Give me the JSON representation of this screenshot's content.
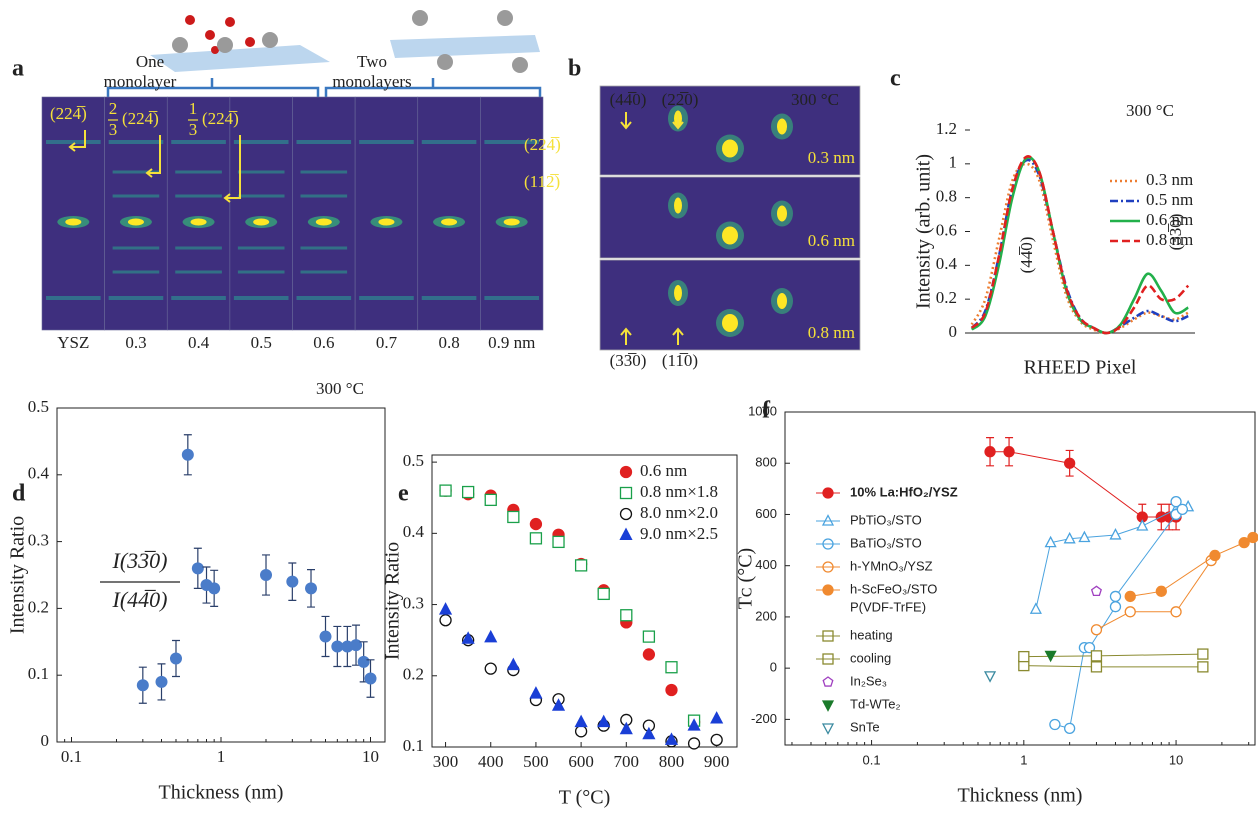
{
  "panel_labels": [
    "a",
    "b",
    "c",
    "d",
    "e",
    "f"
  ],
  "panel_a": {
    "top_labels": [
      [
        "One",
        "monolayer"
      ],
      [
        "Two",
        "monolayers"
      ]
    ],
    "sample_labels": [
      "YSZ",
      "0.3",
      "0.4",
      "0.5",
      "0.6",
      "0.7",
      "0.8",
      "0.9 nm"
    ],
    "annotations": [
      {
        "index": "(224̅)"
      },
      {
        "numerator": "2",
        "denominator": "3",
        "index": "(224̅)"
      },
      {
        "numerator": "1",
        "denominator": "3",
        "index": "(224̅)"
      },
      {
        "index": "(224̅)"
      },
      {
        "index": "(112̅)"
      }
    ]
  },
  "panel_b": {
    "temperature": "300 °C",
    "thickness_labels": [
      "0.3 nm",
      "0.6 nm",
      "0.8 nm"
    ],
    "top_indices": [
      "(44̅0)",
      "(22̅0)"
    ],
    "bottom_indices": [
      "(33̅0)",
      "(11̅0)"
    ]
  },
  "chart_data": [
    {
      "type": "line",
      "annotation": "300 °C",
      "ylabel": "Intensity (arb. unit)",
      "xlabel": "RHEED Pixel",
      "peak_labels": [
        "(44̅0)",
        "(33̅0)"
      ],
      "categories": [
        null,
        null,
        null,
        null,
        null,
        null,
        null,
        null,
        null,
        null,
        null,
        null,
        null,
        null,
        null,
        null,
        null
      ],
      "ylim": [
        0,
        1.2
      ],
      "yticks": [
        0,
        0.2,
        0.4,
        0.6,
        0.8,
        1,
        1.2
      ],
      "legend": "upper right",
      "series": [
        {
          "name": "0.3 nm",
          "color": "#ed7d31",
          "dash": "2,3",
          "values": [
            0.05,
            0.2,
            0.55,
            0.9,
            1.0,
            0.9,
            0.55,
            0.22,
            0.07,
            0.02,
            0.0,
            0.03,
            0.08,
            0.12,
            0.1,
            0.08,
            0.12
          ]
        },
        {
          "name": "0.5 nm",
          "color": "#1f3fbf",
          "dash": "8,3,2,3",
          "values": [
            0.03,
            0.13,
            0.45,
            0.85,
            1.02,
            0.93,
            0.6,
            0.27,
            0.09,
            0.03,
            0.0,
            0.04,
            0.09,
            0.13,
            0.1,
            0.07,
            0.1
          ]
        },
        {
          "name": "0.6 nm",
          "color": "#22b04b",
          "dash": "none",
          "values": [
            0.02,
            0.1,
            0.4,
            0.8,
            1.03,
            0.95,
            0.6,
            0.25,
            0.08,
            0.03,
            0.0,
            0.05,
            0.2,
            0.35,
            0.25,
            0.12,
            0.15
          ]
        },
        {
          "name": "0.8 nm",
          "color": "#e02020",
          "dash": "8,4",
          "values": [
            0.03,
            0.12,
            0.45,
            0.85,
            1.04,
            0.95,
            0.6,
            0.26,
            0.09,
            0.03,
            0.0,
            0.04,
            0.15,
            0.28,
            0.2,
            0.2,
            0.28
          ]
        }
      ]
    },
    {
      "type": "scatter",
      "annotation": "300 °C",
      "ylabel": "Intensity Ratio",
      "xlabel": "Thickness (nm)",
      "ratio_label": {
        "numerator": "I(33̅0)",
        "denominator": "I(44̅0)"
      },
      "xscale": "log",
      "xlim": [
        0.08,
        12.5
      ],
      "xticks": [
        0.1,
        1,
        10
      ],
      "ylim": [
        0,
        0.5
      ],
      "yticks": [
        0,
        0.1,
        0.2,
        0.3,
        0.4,
        0.5
      ],
      "color": "#4a7cc9",
      "x": [
        0.3,
        0.4,
        0.5,
        0.6,
        0.7,
        0.8,
        0.9,
        2,
        3,
        4,
        5,
        6,
        7,
        8,
        9,
        10
      ],
      "values": [
        0.085,
        0.09,
        0.125,
        0.43,
        0.26,
        0.235,
        0.23,
        0.25,
        0.24,
        0.23,
        0.158,
        0.143,
        0.143,
        0.145,
        0.12,
        0.095
      ],
      "errors": [
        0.027,
        0.027,
        0.027,
        0.03,
        0.03,
        0.027,
        0.027,
        0.03,
        0.028,
        0.028,
        0.03,
        0.03,
        0.03,
        0.03,
        0.03,
        0.028
      ]
    },
    {
      "type": "scatter",
      "ylabel": "Intensity Ratio",
      "xlabel": "T (°C)",
      "xlim": [
        270,
        945
      ],
      "xticks": [
        300,
        400,
        500,
        600,
        700,
        800,
        900
      ],
      "ylim": [
        0.1,
        0.51
      ],
      "yticks": [
        0.1,
        0.2,
        0.3,
        0.4,
        0.5
      ],
      "legend": "upper right",
      "series": [
        {
          "name": "0.6 nm",
          "color": "#e02020",
          "marker": "circle",
          "filled": true,
          "x": [
            300,
            350,
            400,
            450,
            500,
            550,
            600,
            650,
            700,
            750,
            800,
            850
          ],
          "values": [
            0.46,
            0.455,
            0.453,
            0.433,
            0.413,
            0.398,
            0.357,
            0.32,
            0.275,
            0.23,
            0.18,
            0.135
          ]
        },
        {
          "name": "0.8 nm×1.8",
          "color": "#1aa04a",
          "marker": "square",
          "filled": false,
          "x": [
            300,
            350,
            400,
            450,
            500,
            550,
            600,
            650,
            700,
            750,
            800,
            850
          ],
          "values": [
            0.46,
            0.458,
            0.447,
            0.423,
            0.393,
            0.388,
            0.355,
            0.315,
            0.285,
            0.255,
            0.212,
            0.137
          ]
        },
        {
          "name": "8.0 nm×2.0",
          "color": "#111111",
          "marker": "circle",
          "filled": false,
          "x": [
            300,
            350,
            400,
            450,
            500,
            550,
            600,
            650,
            700,
            750,
            800,
            850,
            900
          ],
          "values": [
            0.278,
            0.25,
            0.21,
            0.208,
            0.166,
            0.167,
            0.122,
            0.13,
            0.138,
            0.13,
            0.108,
            0.105,
            0.11
          ]
        },
        {
          "name": "9.0 nm×2.5",
          "color": "#1a3fd6",
          "marker": "triangle",
          "filled": true,
          "x": [
            300,
            350,
            400,
            450,
            500,
            550,
            600,
            650,
            700,
            750,
            800,
            850,
            900
          ],
          "values": [
            0.293,
            0.252,
            0.254,
            0.215,
            0.175,
            0.158,
            0.135,
            0.135,
            0.125,
            0.118,
            0.11,
            0.13,
            0.14
          ]
        }
      ]
    },
    {
      "type": "scatter",
      "ylabel": "Tᴄ (°C)",
      "xlabel": "Thickness (nm)",
      "xscale": "log",
      "xlim": [
        0.027,
        33
      ],
      "xticks": [
        0.1,
        1,
        10
      ],
      "ylim": [
        -300,
        1000
      ],
      "yticks": [
        -200,
        0,
        200,
        400,
        600,
        800,
        1000
      ],
      "legend": "left",
      "legend_heading": "P(VDF-TrFE)",
      "series": [
        {
          "name": "10% La:HfO₂/YSZ",
          "color": "#e02020",
          "marker": "circle",
          "filled": true,
          "connect": true,
          "x": [
            0.6,
            0.8,
            2,
            6,
            8,
            9,
            10
          ],
          "values": [
            845,
            845,
            800,
            590,
            590,
            590,
            590
          ],
          "errors": [
            55,
            55,
            50,
            50,
            50,
            50,
            50
          ]
        },
        {
          "name": "PbTiO₃/STO",
          "color": "#4aa3df",
          "marker": "triangle",
          "filled": false,
          "connect": true,
          "x": [
            1.2,
            1.5,
            2,
            2.5,
            4,
            6,
            10,
            12
          ],
          "values": [
            230,
            490,
            505,
            510,
            520,
            555,
            620,
            630
          ]
        },
        {
          "name": "BaTiO₃/STO",
          "color": "#4aa3df",
          "marker": "circle",
          "filled": false,
          "connect": true,
          "x": [
            1.6,
            2,
            2.5,
            2.7,
            4,
            4,
            10,
            10,
            11
          ],
          "values": [
            -220,
            -235,
            80,
            80,
            240,
            280,
            600,
            650,
            620
          ]
        },
        {
          "name": "h-YMnO₃/YSZ",
          "color": "#f08a30",
          "marker": "circle",
          "filled": false,
          "connect": true,
          "x": [
            3,
            5,
            10,
            17
          ],
          "values": [
            150,
            220,
            220,
            420
          ]
        },
        {
          "name": "h-ScFeO₃/STO",
          "color": "#f08a30",
          "marker": "circle",
          "filled": true,
          "connect": true,
          "x": [
            5,
            8,
            18,
            28,
            32
          ],
          "values": [
            280,
            300,
            440,
            490,
            510
          ]
        },
        {
          "name": "heating",
          "color": "#8a8a30",
          "marker": "square",
          "filled": false,
          "connect": true,
          "x": [
            1,
            3,
            15
          ],
          "values": [
            10,
            5,
            5
          ]
        },
        {
          "name": "cooling",
          "color": "#8a8a30",
          "marker": "square",
          "filled": false,
          "connect": true,
          "x": [
            1,
            3,
            15
          ],
          "values": [
            45,
            48,
            55
          ]
        },
        {
          "name": "In₂Se₃",
          "color": "#a040c0",
          "marker": "pentagon",
          "filled": false,
          "connect": false,
          "x": [
            3
          ],
          "values": [
            300
          ]
        },
        {
          "name": "Td-WTe₂",
          "color": "#1a7a2a",
          "marker": "triangle-down",
          "filled": true,
          "connect": false,
          "x": [
            1.5
          ],
          "values": [
            50
          ]
        },
        {
          "name": "SnTe",
          "color": "#3a8aa0",
          "marker": "triangle-down",
          "filled": false,
          "connect": false,
          "x": [
            0.6
          ],
          "values": [
            -30
          ]
        }
      ]
    }
  ]
}
